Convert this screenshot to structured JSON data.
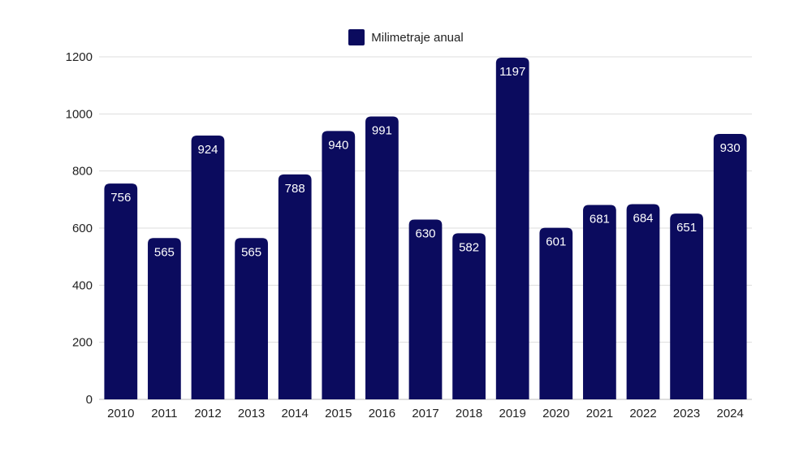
{
  "chart_data": {
    "type": "bar",
    "title": "",
    "xlabel": "",
    "ylabel": "",
    "categories": [
      "2010",
      "2011",
      "2012",
      "2013",
      "2014",
      "2015",
      "2016",
      "2017",
      "2018",
      "2019",
      "2020",
      "2021",
      "2022",
      "2023",
      "2024"
    ],
    "series": [
      {
        "name": "Milimetraje anual",
        "values": [
          756,
          565,
          924,
          565,
          788,
          940,
          991,
          630,
          582,
          1197,
          601,
          681,
          684,
          651,
          930
        ],
        "color": "#0b0b5e"
      }
    ],
    "ylim": [
      0,
      1200
    ],
    "yticks": [
      0,
      200,
      400,
      600,
      800,
      1000,
      1200
    ],
    "grid": true,
    "legend_position": "top-center",
    "data_labels": true
  }
}
